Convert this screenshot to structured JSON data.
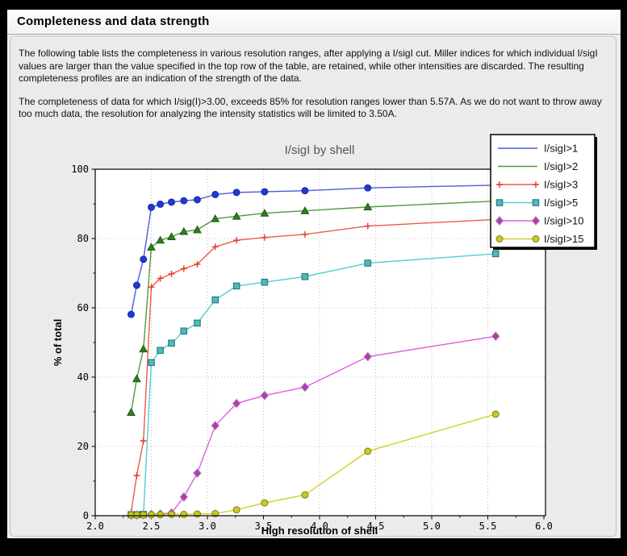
{
  "window": {
    "title": "Completeness and data strength"
  },
  "description": {
    "para1": "The following table lists the completeness in various resolution ranges, after applying a I/sigI cut. Miller indices for which individual I/sigI values are larger than the value specified in the top row of the table, are retained, while other intensities are discarded. The resulting completeness profiles are an indication of the strength of the data.",
    "para2": "The completeness of data for which I/sig(I)>3.00, exceeds  85% for resolution ranges lower than 5.57A. As we do not want to throw away too much data, the resolution for analyzing the intensity statistics will be limited to 3.50A."
  },
  "chart_data": {
    "type": "line",
    "title": "I/sigI by shell",
    "xlabel": "High resolution of shell",
    "ylabel": "% of total",
    "xlim": [
      2.0,
      6.0
    ],
    "ylim": [
      0,
      100
    ],
    "x_major_ticks": [
      2.0,
      2.5,
      3.0,
      3.5,
      4.0,
      4.5,
      5.0,
      5.5,
      6.0
    ],
    "y_major_ticks": [
      0,
      20,
      40,
      60,
      80,
      100
    ],
    "grid": true,
    "legend_position": "upper right",
    "background": "#ebebeb",
    "plot_background": "#ffffff",
    "x": [
      2.32,
      2.37,
      2.43,
      2.5,
      2.58,
      2.68,
      2.79,
      2.91,
      3.07,
      3.26,
      3.51,
      3.87,
      4.43,
      5.57
    ],
    "series": [
      {
        "name": "I/sigI>1",
        "marker": "circle",
        "line_color": "#4a5cd8",
        "marker_fill": "#2337d2",
        "marker_edge": "#1b2ba8",
        "values": [
          58.1,
          66.5,
          74.0,
          89.0,
          89.9,
          90.5,
          90.9,
          91.2,
          92.7,
          93.3,
          93.5,
          93.8,
          94.6,
          95.4
        ]
      },
      {
        "name": "I/sigI>2",
        "marker": "triangle",
        "line_color": "#4f9a3d",
        "marker_fill": "#2f7d1e",
        "marker_edge": "#1e5c12",
        "values": [
          29.8,
          39.5,
          48.1,
          77.5,
          79.5,
          80.5,
          82.0,
          82.5,
          85.7,
          86.4,
          87.3,
          88.0,
          89.1,
          90.8
        ]
      },
      {
        "name": "I/sigI>3",
        "marker": "plus",
        "line_color": "#f05a47",
        "marker_fill": "#e43826",
        "marker_edge": "#e43826",
        "values": [
          1.0,
          11.6,
          21.6,
          66.0,
          68.5,
          69.8,
          71.3,
          72.6,
          77.6,
          79.5,
          80.3,
          81.2,
          83.6,
          85.5
        ]
      },
      {
        "name": "I/sigI>5",
        "marker": "square",
        "line_color": "#52cdd1",
        "marker_fill": "#4fb9bd",
        "marker_edge": "#267d80",
        "values": [
          0.3,
          0.3,
          0.4,
          44.2,
          47.7,
          49.8,
          53.3,
          55.6,
          62.3,
          66.3,
          67.4,
          69.0,
          72.9,
          75.6
        ]
      },
      {
        "name": "I/sigI>10",
        "marker": "diamond",
        "line_color": "#de5fde",
        "marker_fill": "#bf30bf",
        "marker_edge": "#999999",
        "values": [
          0.2,
          0.2,
          0.3,
          0.4,
          0.5,
          0.8,
          5.4,
          12.3,
          26.0,
          32.4,
          34.7,
          37.1,
          45.9,
          51.8
        ]
      },
      {
        "name": "I/sigI>15",
        "marker": "circle",
        "line_color": "#cfcf29",
        "marker_fill": "#c9c922",
        "marker_edge": "#7f7f14",
        "values": [
          0.2,
          0.2,
          0.2,
          0.3,
          0.3,
          0.4,
          0.4,
          0.5,
          0.6,
          1.7,
          3.7,
          6.0,
          18.6,
          29.3
        ]
      }
    ]
  }
}
